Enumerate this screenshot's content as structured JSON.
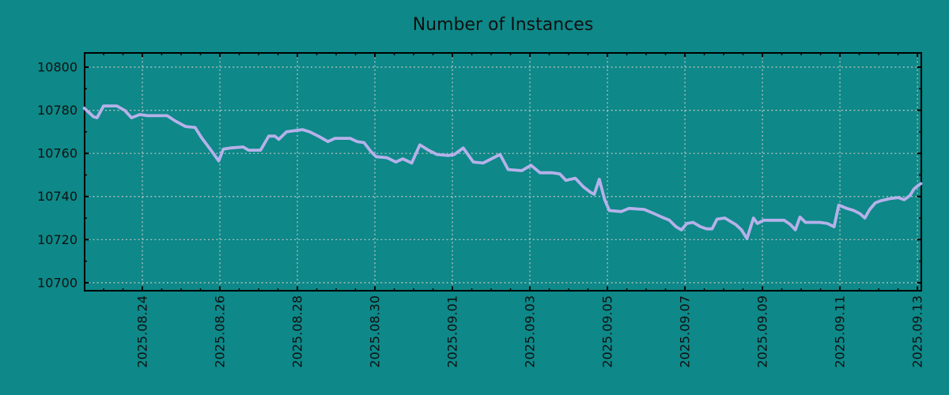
{
  "colors": {
    "background": "#0e8888",
    "frame": "#000000",
    "grid": "#c6c6c6",
    "text": "#101010",
    "line": "#b6b1ea"
  },
  "chart_data": {
    "type": "line",
    "title": "Number of Instances",
    "grid": "dashed on major ticks, both axes",
    "legend": "none",
    "x_axis": {
      "unit": "days since 2025-08-22 00:00",
      "xlim": [
        0.51,
        22.1
      ],
      "tick_offsets": [
        2,
        4,
        6,
        8,
        10,
        12,
        14,
        16,
        18,
        20,
        22
      ],
      "tick_labels": [
        "2025.08.24",
        "2025.08.26",
        "2025.08.28",
        "2025.08.30",
        "2025.09.01",
        "2025.09.03",
        "2025.09.05",
        "2025.09.07",
        "2025.09.09",
        "2025.09.11",
        "2025.09.13"
      ],
      "tick_label_rotation_deg": -90,
      "minor_tick_step": 0.5
    },
    "y_axis": {
      "ylim": [
        10696.3,
        10806.6
      ],
      "tick_values": [
        10700,
        10720,
        10740,
        10760,
        10780,
        10800
      ],
      "tick_labels": [
        "10700",
        "10720",
        "10740",
        "10760",
        "10780",
        "10800"
      ],
      "minor_tick_step": 10
    },
    "series": [
      {
        "name": "Number of Instances",
        "color": "#b6b1ea",
        "points": [
          [
            0.5,
            10781
          ],
          [
            0.74,
            10777
          ],
          [
            0.83,
            10776.5
          ],
          [
            1.0,
            10782
          ],
          [
            1.34,
            10782
          ],
          [
            1.54,
            10780
          ],
          [
            1.72,
            10776.5
          ],
          [
            1.93,
            10778
          ],
          [
            2.13,
            10777.5
          ],
          [
            2.64,
            10777.5
          ],
          [
            2.85,
            10775
          ],
          [
            3.11,
            10772.5
          ],
          [
            3.36,
            10772
          ],
          [
            3.52,
            10767.5
          ],
          [
            3.79,
            10761
          ],
          [
            3.97,
            10756.5
          ],
          [
            4.09,
            10762
          ],
          [
            4.28,
            10762.5
          ],
          [
            4.6,
            10763
          ],
          [
            4.74,
            10761.5
          ],
          [
            5.05,
            10761.5
          ],
          [
            5.26,
            10768
          ],
          [
            5.42,
            10768
          ],
          [
            5.52,
            10766.5
          ],
          [
            5.72,
            10770
          ],
          [
            5.91,
            10770.5
          ],
          [
            6.13,
            10771
          ],
          [
            6.32,
            10770
          ],
          [
            6.54,
            10768
          ],
          [
            6.79,
            10765.5
          ],
          [
            6.97,
            10767
          ],
          [
            7.36,
            10767
          ],
          [
            7.54,
            10765.5
          ],
          [
            7.72,
            10765
          ],
          [
            7.89,
            10761
          ],
          [
            8.03,
            10758.5
          ],
          [
            8.31,
            10758
          ],
          [
            8.54,
            10756
          ],
          [
            8.72,
            10757.5
          ],
          [
            8.95,
            10755.5
          ],
          [
            9.16,
            10764
          ],
          [
            9.38,
            10761.5
          ],
          [
            9.6,
            10759.5
          ],
          [
            9.89,
            10759
          ],
          [
            10.05,
            10759.5
          ],
          [
            10.28,
            10762.5
          ],
          [
            10.54,
            10756
          ],
          [
            10.79,
            10755.5
          ],
          [
            11.01,
            10757.5
          ],
          [
            11.23,
            10759.5
          ],
          [
            11.44,
            10752.5
          ],
          [
            11.79,
            10752
          ],
          [
            12.03,
            10754.5
          ],
          [
            12.26,
            10751
          ],
          [
            12.58,
            10751
          ],
          [
            12.77,
            10750.5
          ],
          [
            12.93,
            10747.5
          ],
          [
            13.17,
            10748.5
          ],
          [
            13.38,
            10744.5
          ],
          [
            13.56,
            10742
          ],
          [
            13.66,
            10741
          ],
          [
            13.79,
            10748
          ],
          [
            13.93,
            10738.5
          ],
          [
            14.05,
            10733.5
          ],
          [
            14.36,
            10733
          ],
          [
            14.56,
            10734.5
          ],
          [
            14.95,
            10734
          ],
          [
            15.15,
            10732.5
          ],
          [
            15.4,
            10730.5
          ],
          [
            15.6,
            10729
          ],
          [
            15.77,
            10726
          ],
          [
            15.91,
            10724.5
          ],
          [
            16.05,
            10727.5
          ],
          [
            16.21,
            10728
          ],
          [
            16.4,
            10726
          ],
          [
            16.56,
            10725
          ],
          [
            16.7,
            10725
          ],
          [
            16.83,
            10729.5
          ],
          [
            17.03,
            10730
          ],
          [
            17.17,
            10728.5
          ],
          [
            17.31,
            10727
          ],
          [
            17.46,
            10724.5
          ],
          [
            17.6,
            10720.5
          ],
          [
            17.77,
            10730
          ],
          [
            17.87,
            10727.5
          ],
          [
            18.03,
            10729
          ],
          [
            18.56,
            10729
          ],
          [
            18.72,
            10727
          ],
          [
            18.85,
            10724.5
          ],
          [
            18.97,
            10730.5
          ],
          [
            19.11,
            10728
          ],
          [
            19.48,
            10728
          ],
          [
            19.68,
            10727.5
          ],
          [
            19.85,
            10726
          ],
          [
            19.97,
            10736
          ],
          [
            20.18,
            10734.5
          ],
          [
            20.36,
            10733.5
          ],
          [
            20.52,
            10732
          ],
          [
            20.64,
            10730
          ],
          [
            20.77,
            10734
          ],
          [
            20.91,
            10737
          ],
          [
            21.05,
            10738
          ],
          [
            21.28,
            10739
          ],
          [
            21.5,
            10739.5
          ],
          [
            21.66,
            10738.5
          ],
          [
            21.81,
            10740.5
          ],
          [
            21.91,
            10743.5
          ],
          [
            22.01,
            10745
          ],
          [
            22.09,
            10746
          ]
        ]
      }
    ]
  }
}
